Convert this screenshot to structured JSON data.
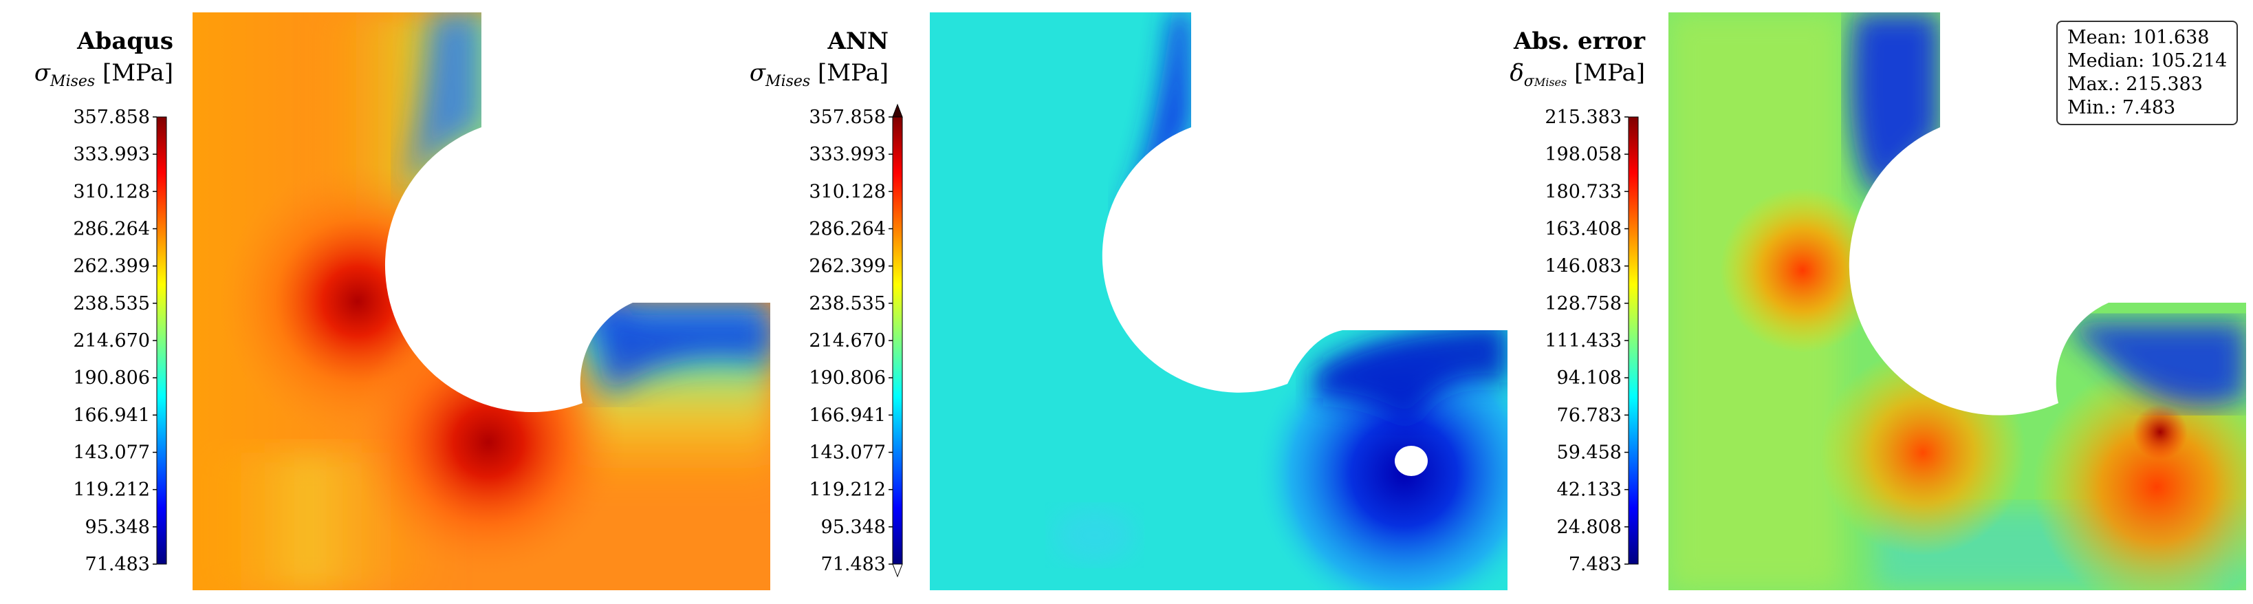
{
  "chart_data": [
    {
      "type": "heatmap",
      "title": "Abaqus",
      "colorbar_label": "σMises [MPa]",
      "colorbar_label_parts": {
        "symbol": "σ",
        "sub": "Mises",
        "unit": "[MPa]"
      },
      "colormap": "jet",
      "range": [
        71.483,
        357.858
      ],
      "colorbar_ticks": [
        "357.858",
        "333.993",
        "310.128",
        "286.264",
        "262.399",
        "238.535",
        "214.670",
        "190.806",
        "166.941",
        "143.077",
        "119.212",
        "95.348",
        "71.483"
      ],
      "field_description_colors": {
        "background": "#ff8a1a",
        "hotspot": "#b00000"
      }
    },
    {
      "type": "heatmap",
      "title": "ANN",
      "colorbar_label": "σMises [MPa]",
      "colorbar_label_parts": {
        "symbol": "σ",
        "sub": "Mises",
        "unit": "[MPa]"
      },
      "colormap": "jet",
      "range": [
        71.483,
        357.858
      ],
      "colorbar_extend": "both",
      "colorbar_ticks": [
        "357.858",
        "333.993",
        "310.128",
        "286.264",
        "262.399",
        "238.535",
        "214.670",
        "190.806",
        "166.941",
        "143.077",
        "119.212",
        "95.348",
        "71.483"
      ],
      "field_description_colors": {
        "background": "#22e6e0",
        "low": "#0018c8"
      }
    },
    {
      "type": "heatmap",
      "title": "Abs. error",
      "colorbar_label": "δσMises [MPa]",
      "colorbar_label_parts": {
        "symbol": "δ",
        "subsym": "σ",
        "sub": "Mises",
        "unit": "[MPa]"
      },
      "colormap": "jet",
      "range": [
        7.483,
        215.383
      ],
      "colorbar_ticks": [
        "215.383",
        "198.058",
        "180.733",
        "163.408",
        "146.083",
        "128.758",
        "111.433",
        "94.108",
        "76.783",
        "59.458",
        "42.133",
        "24.808",
        "7.483"
      ],
      "stats": {
        "mean": "Mean: 101.638",
        "median": "Median: 105.214",
        "max": "Max.: 215.383",
        "min": "Min.: 7.483"
      },
      "field_description_colors": {
        "background": "#7be86a",
        "high": "#ff5a00"
      }
    }
  ]
}
